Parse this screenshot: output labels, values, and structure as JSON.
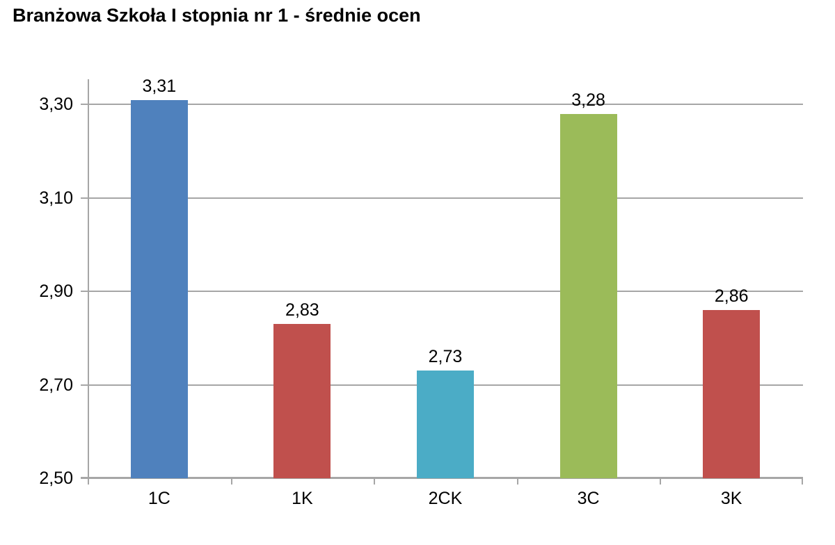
{
  "chart_data": {
    "type": "bar",
    "title": "Branżowa Szkoła I stopnia nr 1 - średnie ocen",
    "xlabel": "",
    "ylabel": "",
    "categories": [
      "1C",
      "1K",
      "2CK",
      "3C",
      "3K"
    ],
    "values": [
      3.31,
      2.83,
      2.73,
      3.28,
      2.86
    ],
    "value_labels": [
      "3,31",
      "2,83",
      "2,73",
      "3,28",
      "2,86"
    ],
    "bar_colors": [
      "#4F81BD",
      "#C0504D",
      "#4BACC6",
      "#9BBB59",
      "#C0504D"
    ],
    "ylim": [
      2.5,
      3.354
    ],
    "yticks": [
      {
        "value": 2.5,
        "label": "2,50"
      },
      {
        "value": 2.7,
        "label": "2,70"
      },
      {
        "value": 2.9,
        "label": "2,90"
      },
      {
        "value": 3.1,
        "label": "3,10"
      },
      {
        "value": 3.3,
        "label": "3,30"
      }
    ],
    "grid": "horizontal",
    "legend": "none",
    "axis_color": "#A6A6A6",
    "gridline_color": "#A6A6A6",
    "text_color": "#000000",
    "title_color": "#000000",
    "background_color": "#FFFFFF"
  }
}
